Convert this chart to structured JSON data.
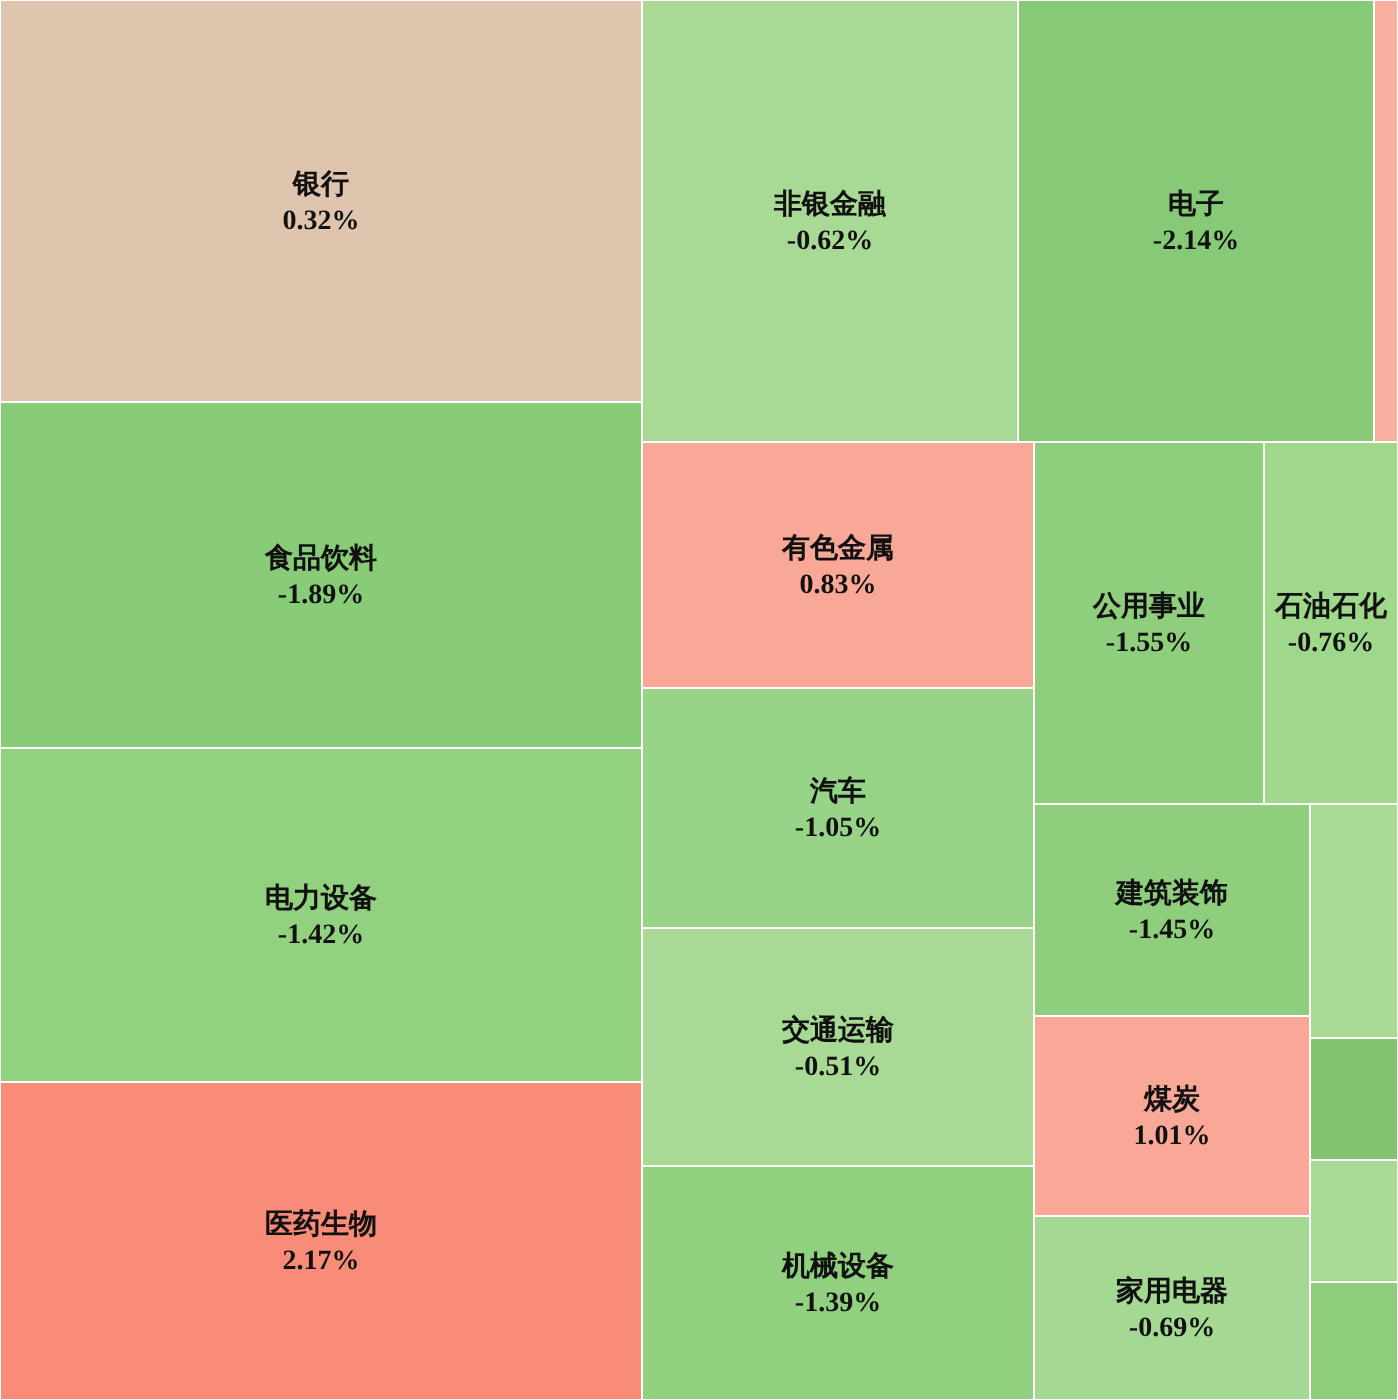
{
  "chart_data": {
    "type": "other",
    "categories": [
      "银行",
      "食品饮料",
      "电力设备",
      "医药生物",
      "非银金融",
      "电子",
      null,
      "有色金属",
      "汽车",
      "交通运输",
      "机械设备",
      "公用事业",
      "石油石化",
      "建筑装饰",
      "煤炭",
      "家用电器",
      null,
      null,
      null,
      null
    ],
    "values": [
      0.32,
      -1.89,
      -1.42,
      2.17,
      -0.62,
      -2.14,
      null,
      0.83,
      -1.05,
      -0.51,
      -1.39,
      -1.55,
      -0.76,
      -1.45,
      1.01,
      -0.69,
      null,
      null,
      null,
      null
    ],
    "value_labels": [
      "0.32%",
      "-1.89%",
      "-1.42%",
      "2.17%",
      "-0.62%",
      "-2.14%",
      null,
      "0.83%",
      "-1.05%",
      "-0.51%",
      "-1.39%",
      "-1.55%",
      "-0.76%",
      "-1.45%",
      "1.01%",
      "-0.69%",
      null,
      null,
      null,
      null
    ],
    "colors": [
      "#dfc5ae",
      "#88cc78",
      "#92d17f",
      "#f98c78",
      "#a8da95",
      "#86c977",
      "#f7b0a0",
      "#f9a898",
      "#98d487",
      "#a8da96",
      "#90d07e",
      "#8fce7c",
      "#9fd78b",
      "#8fce7d",
      "#f9a898",
      "#a5d993",
      "#a8da96",
      "#80c46f",
      "#a8da95",
      "#8dcd7b"
    ]
  }
}
